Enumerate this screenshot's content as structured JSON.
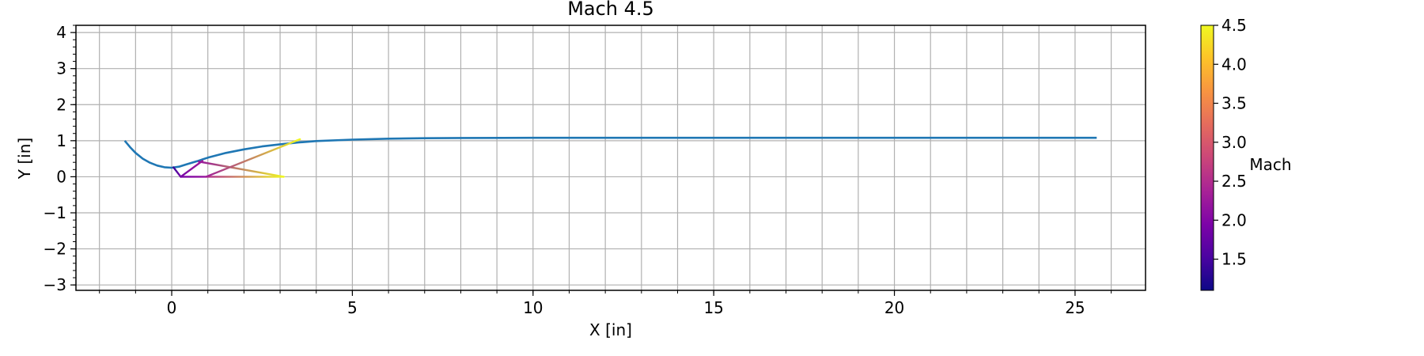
{
  "chart_data": {
    "type": "line",
    "title": "Mach 4.5",
    "xlabel": "X [in]",
    "ylabel": "Y [in]",
    "xlim": [
      -2.65,
      26.95
    ],
    "ylim": [
      -3.15,
      4.2
    ],
    "xticks": [
      0,
      5,
      10,
      15,
      20,
      25
    ],
    "yticks": [
      -3,
      -2,
      -1,
      0,
      1,
      2,
      3,
      4
    ],
    "grid": true,
    "series": [
      {
        "kind": "contour",
        "color": "#1f77b4",
        "x": [
          -1.3,
          -1.15,
          -1.0,
          -0.8,
          -0.6,
          -0.4,
          -0.2,
          0.0,
          0.2,
          0.4,
          0.7,
          1.0,
          1.5,
          2.0,
          2.5,
          3.0,
          3.5,
          4.0,
          5.0,
          6.0,
          7.0,
          8.0,
          10.0,
          15.0,
          20.0,
          25.6
        ],
        "y": [
          1.0,
          0.82,
          0.66,
          0.5,
          0.39,
          0.31,
          0.265,
          0.25,
          0.28,
          0.34,
          0.43,
          0.53,
          0.66,
          0.76,
          0.84,
          0.9,
          0.95,
          0.99,
          1.03,
          1.055,
          1.07,
          1.075,
          1.08,
          1.08,
          1.08,
          1.08
        ]
      },
      {
        "kind": "characteristic",
        "x": [
          0.05,
          0.25
        ],
        "y": [
          0.26,
          0.0
        ],
        "mach": [
          1.4,
          1.9
        ]
      },
      {
        "kind": "characteristic",
        "x": [
          0.25,
          0.95
        ],
        "y": [
          0.0,
          0.0
        ],
        "mach": [
          1.9,
          2.2
        ]
      },
      {
        "kind": "characteristic",
        "x": [
          0.95,
          3.1
        ],
        "y": [
          0.0,
          0.0
        ],
        "mach": [
          2.5,
          4.5
        ]
      },
      {
        "kind": "characteristic",
        "x": [
          0.25,
          0.85
        ],
        "y": [
          0.0,
          0.44
        ],
        "mach": [
          1.9,
          2.3
        ]
      },
      {
        "kind": "characteristic",
        "x": [
          0.75,
          3.1
        ],
        "y": [
          0.42,
          0.0
        ],
        "mach": [
          2.2,
          4.5
        ]
      },
      {
        "kind": "characteristic",
        "x": [
          0.95,
          3.55
        ],
        "y": [
          0.0,
          1.04
        ],
        "mach": [
          2.3,
          4.5
        ]
      }
    ],
    "colorbar": {
      "label": "Mach",
      "cmap": "plasma",
      "min": 1.1,
      "max": 4.5,
      "ticks": [
        1.5,
        2.0,
        2.5,
        3.0,
        3.5,
        4.0,
        4.5
      ],
      "tick_labels": [
        "1.5",
        "2.0",
        "2.5",
        "3.0",
        "3.5",
        "4.0",
        "4.5"
      ]
    }
  }
}
